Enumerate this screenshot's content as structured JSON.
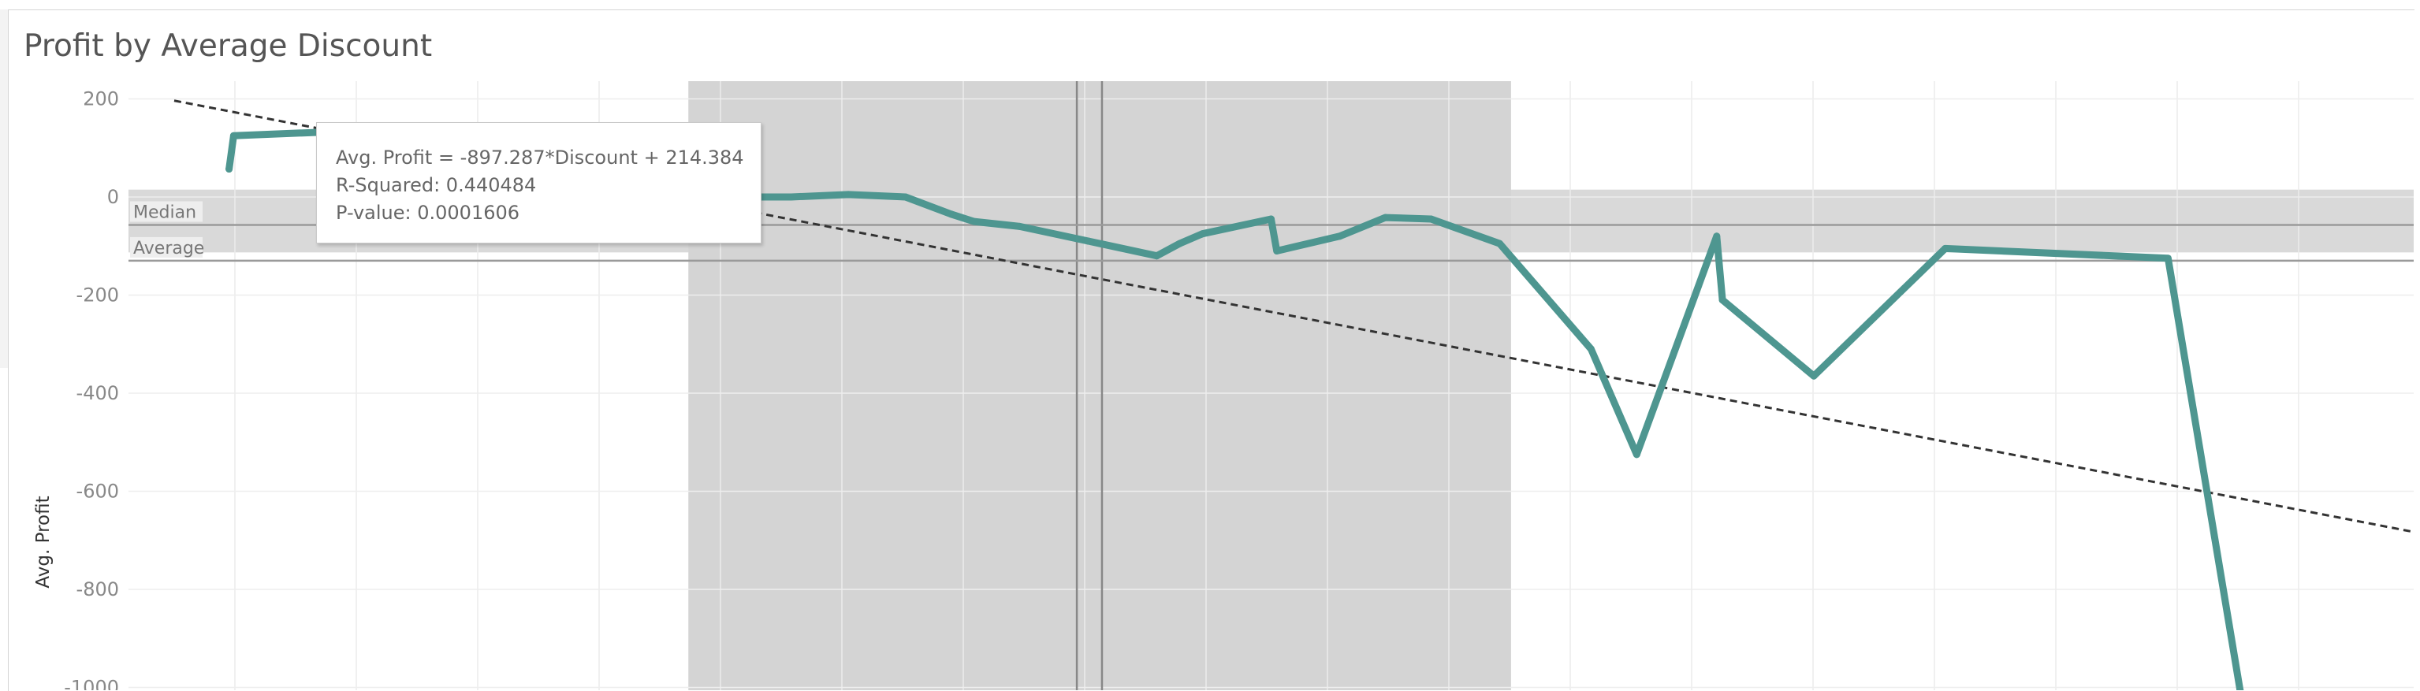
{
  "title": "Profit by Average Discount",
  "chart_data": {
    "type": "line",
    "title": "Profit by Average Discount",
    "xlabel": "",
    "ylabel": "Avg. Profit",
    "ylim": [
      -1000,
      230
    ],
    "xlim": [
      0,
      1
    ],
    "grid": true,
    "series": [
      {
        "color": "#4e9690",
        "x": [
          0.044,
          0.046,
          0.1,
          0.16,
          0.2,
          0.25,
          0.29,
          0.315,
          0.34,
          0.36,
          0.37,
          0.39,
          0.42,
          0.45,
          0.46,
          0.47,
          0.5,
          0.5025,
          0.53,
          0.55,
          0.57,
          0.6,
          0.64,
          0.66,
          0.695,
          0.6975,
          0.7375,
          0.795,
          0.8925,
          0.924
        ],
        "y": [
          57,
          125,
          135,
          140,
          28,
          0,
          0,
          5,
          0,
          -35,
          -50,
          -60,
          -90,
          -120,
          -95,
          -75,
          -45,
          -110,
          -80,
          -42,
          -45,
          -95,
          -310,
          -525,
          -80,
          -210,
          -365,
          -105,
          -125,
          -1005
        ]
      }
    ],
    "trend_line": {
      "slope": -897.287,
      "intercept": 214.384,
      "style": "dashed",
      "color": "#333333"
    },
    "reference_lines": [
      {
        "label": "Median",
        "value": -57
      },
      {
        "label": "Average",
        "value": -130
      }
    ],
    "reference_band_y": [
      -113,
      15
    ],
    "highlight_band_x": [
      0.245,
      0.605
    ],
    "crosshair_x": [
      0.415,
      0.426
    ],
    "y_ticks": [
      200,
      0,
      -200,
      -400,
      -600,
      -800,
      -1000
    ],
    "y_tick_labels": [
      "200",
      "0",
      "-200",
      "-400",
      "-600",
      "-800",
      "-1000"
    ]
  },
  "tooltip": {
    "line1": "Avg. Profit = -897.287*Discount + 214.384",
    "line2": "R-Squared: 0.440484",
    "line3": "P-value: 0.0001606"
  }
}
